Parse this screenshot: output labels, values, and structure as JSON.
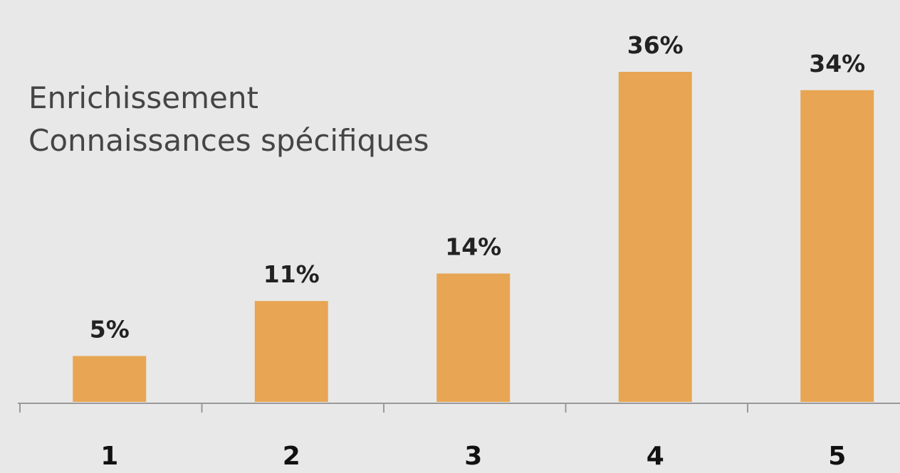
{
  "chart_data": {
    "type": "bar",
    "title": "Enrichissement",
    "subtitle": "Connaissances spécifiques",
    "categories": [
      "1",
      "2",
      "3",
      "4",
      "5"
    ],
    "values": [
      5,
      11,
      14,
      36,
      34
    ],
    "value_labels": [
      "5%",
      "11%",
      "14%",
      "36%",
      "34%"
    ],
    "color": "#e8a553"
  }
}
